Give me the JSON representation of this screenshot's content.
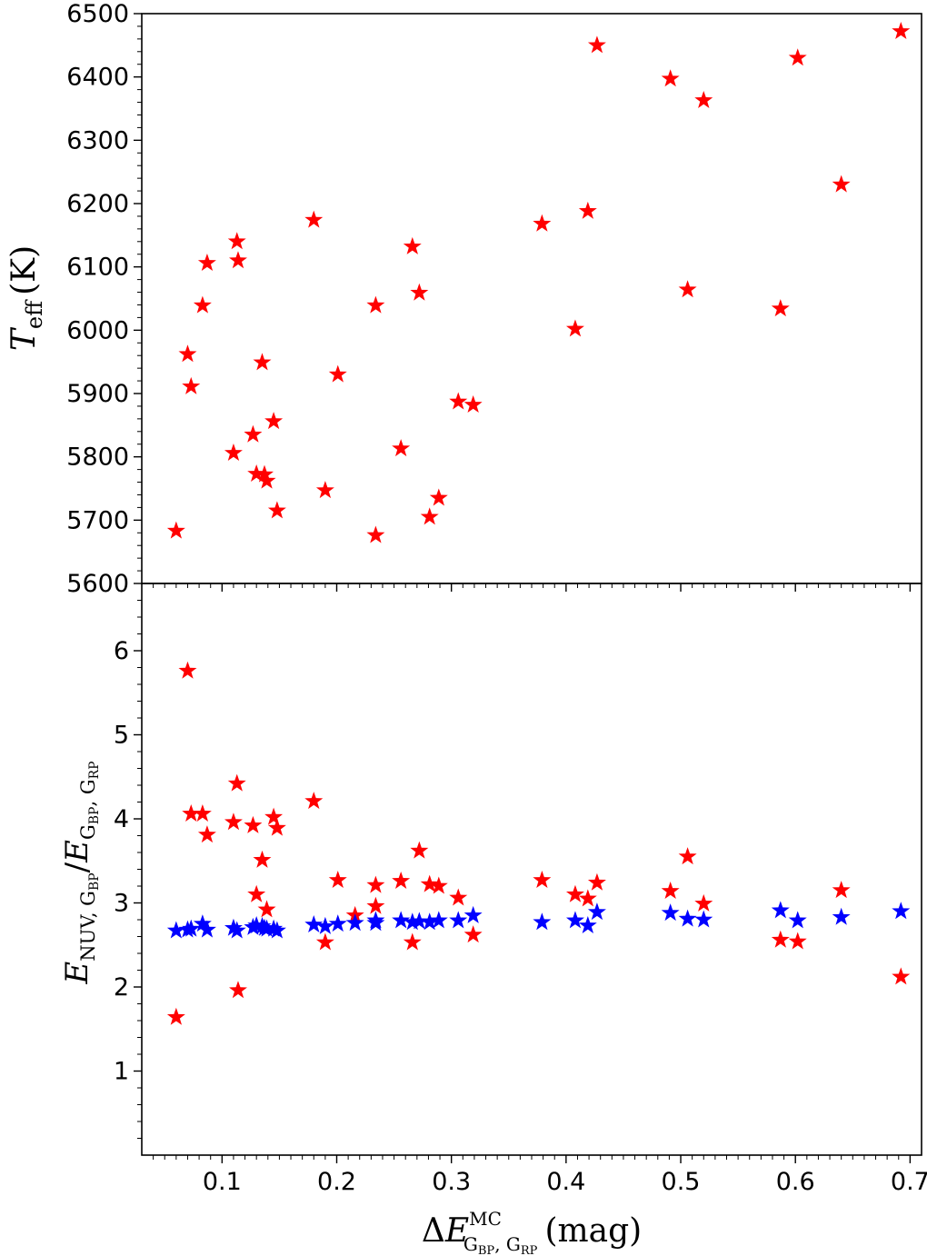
{
  "chart_data": [
    {
      "type": "scatter",
      "panel": "top",
      "ylabel": {
        "main": "T",
        "sub": "eff",
        "unit": "(K)"
      },
      "xlim": [
        0.03,
        0.71
      ],
      "ylim": [
        5600,
        6500
      ],
      "yticks": [
        "5600",
        "5700",
        "5800",
        "5900",
        "6000",
        "6100",
        "6200",
        "6300",
        "6400",
        "6500"
      ],
      "x_ticks_labeled": false,
      "grid": false,
      "legend": "none",
      "marker": "star",
      "series": [
        {
          "color": "#ff0000",
          "points": [
            [
              0.06,
              5683
            ],
            [
              0.07,
              5962
            ],
            [
              0.073,
              5911
            ],
            [
              0.083,
              6039
            ],
            [
              0.087,
              6106
            ],
            [
              0.11,
              5806
            ],
            [
              0.113,
              6140
            ],
            [
              0.114,
              6110
            ],
            [
              0.127,
              5835
            ],
            [
              0.13,
              5773
            ],
            [
              0.135,
              5949
            ],
            [
              0.137,
              5772
            ],
            [
              0.139,
              5762
            ],
            [
              0.145,
              5856
            ],
            [
              0.148,
              5715
            ],
            [
              0.18,
              6174
            ],
            [
              0.19,
              5747
            ],
            [
              0.201,
              5930
            ],
            [
              0.234,
              6039
            ],
            [
              0.234,
              5676
            ],
            [
              0.256,
              5813
            ],
            [
              0.266,
              6132
            ],
            [
              0.272,
              6059
            ],
            [
              0.281,
              5705
            ],
            [
              0.289,
              5735
            ],
            [
              0.306,
              5887
            ],
            [
              0.319,
              5882
            ],
            [
              0.379,
              6168
            ],
            [
              0.408,
              6002
            ],
            [
              0.419,
              6188
            ],
            [
              0.427,
              6450
            ],
            [
              0.491,
              6397
            ],
            [
              0.506,
              6064
            ],
            [
              0.52,
              6363
            ],
            [
              0.587,
              6034
            ],
            [
              0.602,
              6430
            ],
            [
              0.64,
              6230
            ],
            [
              0.692,
              6472
            ]
          ]
        }
      ]
    },
    {
      "type": "scatter",
      "panel": "bottom",
      "ylabel": {
        "a": "E",
        "a_sub": "NUV, G",
        "a_subsub": "BP",
        "b": "E",
        "b_sub": "G",
        "b_subsub1": "BP",
        "b_mid": ", G",
        "b_subsub2": "RP",
        "slash": "/"
      },
      "xlabel": {
        "delta": "Δ",
        "e": "E",
        "sup": "MC",
        "sub_g1": "G",
        "sub_bp": "BP",
        "sub_comma": ", G",
        "sub_rp": "RP",
        "unit": "(mag)"
      },
      "xlim": [
        0.03,
        0.71
      ],
      "ylim": [
        0,
        6.8
      ],
      "xticks": [
        "0.1",
        "0.2",
        "0.3",
        "0.4",
        "0.5",
        "0.6",
        "0.7"
      ],
      "yticks": [
        "1",
        "2",
        "3",
        "4",
        "5",
        "6"
      ],
      "grid": false,
      "legend": "none",
      "marker": "star",
      "series": [
        {
          "color": "#ff0000",
          "points": [
            [
              0.06,
              1.64
            ],
            [
              0.07,
              5.76
            ],
            [
              0.073,
              4.06
            ],
            [
              0.083,
              4.06
            ],
            [
              0.087,
              3.81
            ],
            [
              0.11,
              3.96
            ],
            [
              0.113,
              4.42
            ],
            [
              0.114,
              1.96
            ],
            [
              0.127,
              3.92
            ],
            [
              0.13,
              3.1
            ],
            [
              0.135,
              3.51
            ],
            [
              0.139,
              2.92
            ],
            [
              0.145,
              4.02
            ],
            [
              0.148,
              3.89
            ],
            [
              0.18,
              4.21
            ],
            [
              0.19,
              2.53
            ],
            [
              0.201,
              3.27
            ],
            [
              0.216,
              2.85
            ],
            [
              0.234,
              3.21
            ],
            [
              0.234,
              2.96
            ],
            [
              0.256,
              3.26
            ],
            [
              0.266,
              2.53
            ],
            [
              0.272,
              3.62
            ],
            [
              0.281,
              3.22
            ],
            [
              0.289,
              3.2
            ],
            [
              0.306,
              3.06
            ],
            [
              0.319,
              2.62
            ],
            [
              0.379,
              3.27
            ],
            [
              0.408,
              3.1
            ],
            [
              0.419,
              3.05
            ],
            [
              0.427,
              3.24
            ],
            [
              0.491,
              3.14
            ],
            [
              0.506,
              3.55
            ],
            [
              0.52,
              2.99
            ],
            [
              0.587,
              2.56
            ],
            [
              0.602,
              2.54
            ],
            [
              0.64,
              3.15
            ],
            [
              0.692,
              2.12
            ]
          ]
        },
        {
          "color": "#0000ff",
          "points": [
            [
              0.06,
              2.67
            ],
            [
              0.07,
              2.68
            ],
            [
              0.073,
              2.69
            ],
            [
              0.083,
              2.75
            ],
            [
              0.087,
              2.68
            ],
            [
              0.11,
              2.7
            ],
            [
              0.113,
              2.67
            ],
            [
              0.127,
              2.71
            ],
            [
              0.13,
              2.73
            ],
            [
              0.135,
              2.72
            ],
            [
              0.137,
              2.7
            ],
            [
              0.139,
              2.69
            ],
            [
              0.145,
              2.69
            ],
            [
              0.148,
              2.67
            ],
            [
              0.18,
              2.74
            ],
            [
              0.19,
              2.72
            ],
            [
              0.201,
              2.75
            ],
            [
              0.216,
              2.76
            ],
            [
              0.234,
              2.79
            ],
            [
              0.234,
              2.76
            ],
            [
              0.256,
              2.79
            ],
            [
              0.266,
              2.77
            ],
            [
              0.272,
              2.78
            ],
            [
              0.281,
              2.77
            ],
            [
              0.289,
              2.79
            ],
            [
              0.306,
              2.79
            ],
            [
              0.319,
              2.85
            ],
            [
              0.379,
              2.77
            ],
            [
              0.408,
              2.79
            ],
            [
              0.419,
              2.73
            ],
            [
              0.427,
              2.89
            ],
            [
              0.491,
              2.88
            ],
            [
              0.506,
              2.81
            ],
            [
              0.52,
              2.8
            ],
            [
              0.587,
              2.91
            ],
            [
              0.602,
              2.79
            ],
            [
              0.64,
              2.83
            ],
            [
              0.692,
              2.9
            ]
          ]
        }
      ]
    }
  ]
}
